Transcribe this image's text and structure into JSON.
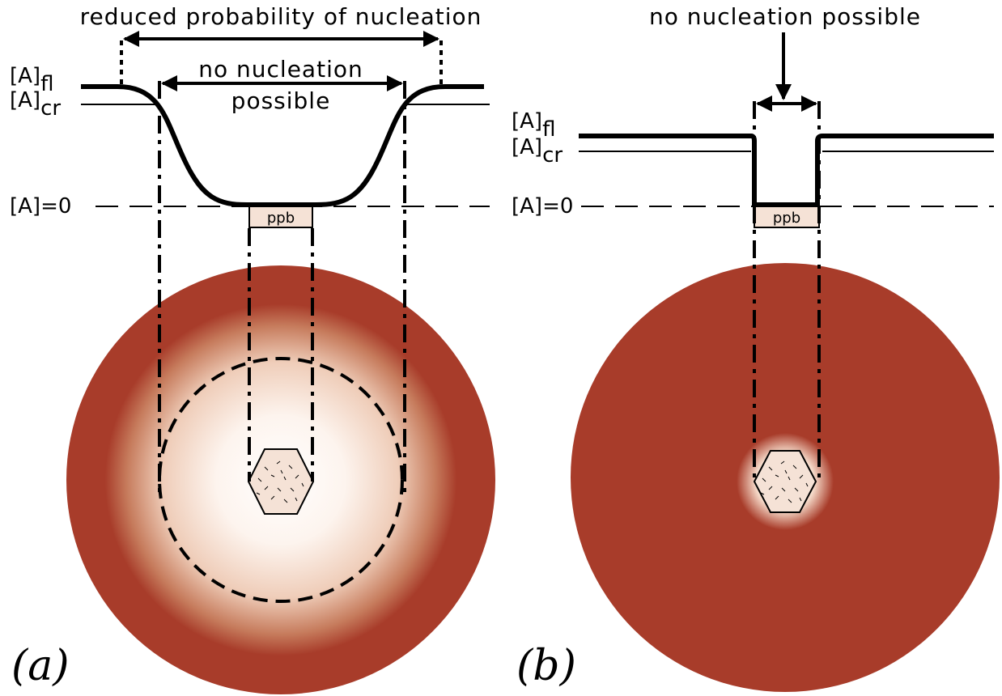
{
  "panel_a": {
    "label": "(a)",
    "reduced": "reduced probability of nucleation",
    "no_nucleation": [
      "no nucleation",
      "possible"
    ],
    "fl": {
      "base": "[A]",
      "sub": "fl"
    },
    "cr": {
      "base": "[A]",
      "sub": "cr"
    },
    "zero": "[A]=0",
    "ppb": "ppb"
  },
  "panel_b": {
    "label": "(b)",
    "no_nucleation": "no nucleation possible",
    "fl": {
      "base": "[A]",
      "sub": "fl"
    },
    "cr": {
      "base": "[A]",
      "sub": "cr"
    },
    "zero": "[A]=0",
    "ppb": "ppb"
  }
}
